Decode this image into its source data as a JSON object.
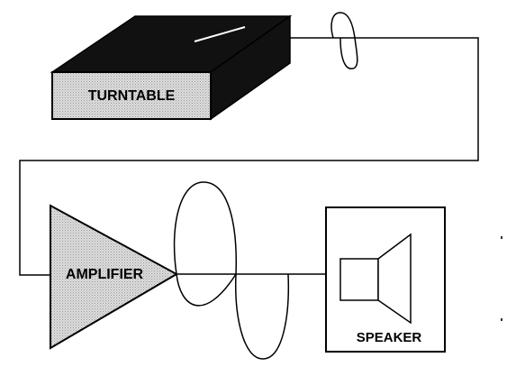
{
  "diagram": {
    "components": {
      "turntable": {
        "label": "TURNTABLE"
      },
      "amplifier": {
        "label": "AMPLIFIER"
      },
      "speaker": {
        "label": "SPEAKER"
      }
    },
    "colors": {
      "line": "#000000",
      "device_fill": "#d6d6d6",
      "device_top": "#111111",
      "background": "#ffffff"
    }
  }
}
